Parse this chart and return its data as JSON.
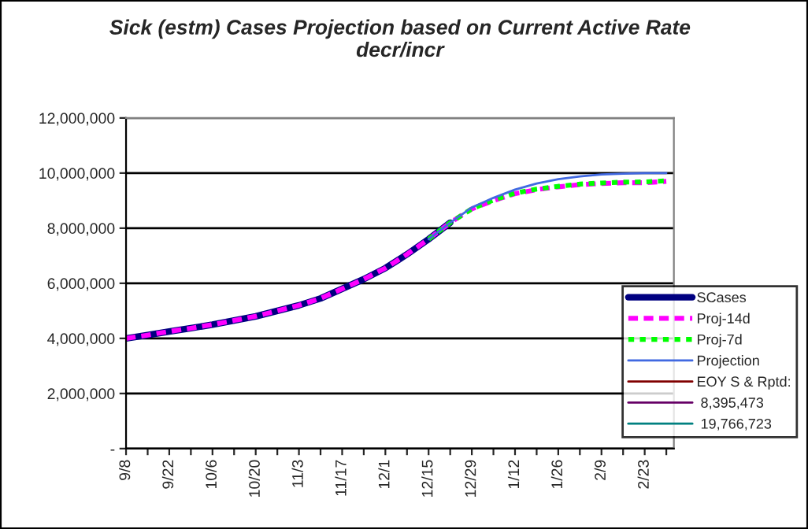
{
  "chart_data": {
    "type": "line",
    "title": "Sick (estm) Cases Projection based on Current Active Rate\ndecr/incr",
    "categories": [
      "9/8",
      null,
      "9/22",
      null,
      "10/6",
      null,
      "10/20",
      null,
      "11/3",
      null,
      "11/17",
      null,
      "12/1",
      null,
      "12/15",
      null,
      "12/29",
      null,
      "1/12",
      null,
      "1/26",
      null,
      "2/9",
      null,
      "2/23",
      null
    ],
    "ylim": [
      0,
      12000000
    ],
    "yticks": [
      {
        "value": 0,
        "label": "-"
      },
      {
        "value": 2000000,
        "label": "2,000,000"
      },
      {
        "value": 4000000,
        "label": "4,000,000"
      },
      {
        "value": 6000000,
        "label": "6,000,000"
      },
      {
        "value": 8000000,
        "label": "8,000,000"
      },
      {
        "value": 10000000,
        "label": "10,000,000"
      },
      {
        "value": 12000000,
        "label": "12,000,000"
      }
    ],
    "grid": "y",
    "legend": "bottom right",
    "series": [
      {
        "name": "SCases",
        "color": "#000080",
        "line_style": "solid",
        "values": [
          4000000,
          4120000,
          4250000,
          4370000,
          4500000,
          4650000,
          4800000,
          5000000,
          5200000,
          5450000,
          5800000,
          6150000,
          6550000,
          7050000,
          7600000,
          8200000,
          null,
          null,
          null,
          null,
          null,
          null,
          null,
          null,
          null,
          null
        ]
      },
      {
        "name": "Proj-14d",
        "color": "#ff00ff",
        "line_style": "dashed",
        "values": [
          4000000,
          4120000,
          4250000,
          4370000,
          4500000,
          4650000,
          4800000,
          5000000,
          5200000,
          5450000,
          5800000,
          6150000,
          6550000,
          7050000,
          7600000,
          8200000,
          8700000,
          9000000,
          9250000,
          9400000,
          9500000,
          9580000,
          9620000,
          9650000,
          9650000,
          9700000
        ]
      },
      {
        "name": "Proj-7d",
        "color": "#00ff00",
        "line_style": "dotted",
        "values": [
          null,
          null,
          null,
          null,
          null,
          null,
          null,
          null,
          null,
          null,
          null,
          null,
          null,
          null,
          7600000,
          8200000,
          8700000,
          9020000,
          9270000,
          9420000,
          9520000,
          9600000,
          9640000,
          9670000,
          9680000,
          9720000
        ]
      },
      {
        "name": "Projection",
        "color": "#4169e1",
        "line_style": "solid",
        "values": [
          null,
          null,
          null,
          null,
          null,
          null,
          null,
          null,
          null,
          null,
          null,
          null,
          null,
          null,
          7600000,
          8200000,
          8750000,
          9100000,
          9400000,
          9620000,
          9780000,
          9880000,
          9950000,
          9980000,
          10000000,
          10000000
        ]
      },
      {
        "name": "EOY S & Rptd:",
        "color": "#800000",
        "line_style": "solid",
        "values": [
          null,
          null,
          null,
          null,
          null,
          null,
          null,
          null,
          null,
          null,
          null,
          null,
          null,
          null,
          null,
          null,
          null,
          null,
          null,
          null,
          null,
          null,
          null,
          null,
          null,
          null
        ]
      },
      {
        "name": " 8,395,473",
        "color": "#660066",
        "line_style": "solid",
        "values": [
          null,
          null,
          null,
          null,
          null,
          null,
          null,
          null,
          null,
          null,
          null,
          null,
          null,
          null,
          null,
          null,
          null,
          null,
          null,
          null,
          null,
          null,
          null,
          null,
          null,
          null
        ]
      },
      {
        "name": " 19,766,723",
        "color": "#008080",
        "line_style": "solid",
        "values": [
          null,
          null,
          null,
          null,
          null,
          null,
          null,
          null,
          null,
          null,
          null,
          null,
          null,
          null,
          null,
          null,
          null,
          null,
          null,
          null,
          null,
          null,
          null,
          null,
          null,
          null
        ]
      }
    ]
  }
}
